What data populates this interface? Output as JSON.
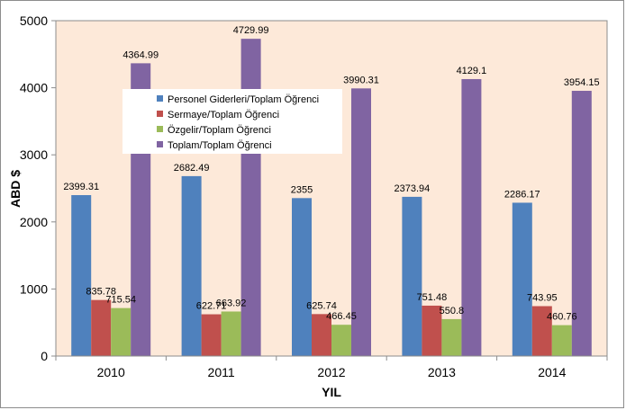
{
  "chart_data": {
    "type": "bar",
    "categories": [
      "2010",
      "2011",
      "2012",
      "2013",
      "2014"
    ],
    "series": [
      {
        "name": "Personel Giderleri/Toplam Öğrenci",
        "color": "#4f81bd",
        "values": [
          2399.31,
          2682.49,
          2355,
          2373.94,
          2286.17
        ],
        "labels": [
          "2399.31",
          "2682.49",
          "2355",
          "2373.94",
          "2286.17"
        ]
      },
      {
        "name": "Sermaye/Toplam Öğrenci",
        "color": "#c0504d",
        "values": [
          835.78,
          622.71,
          625.74,
          751.48,
          743.95
        ],
        "labels": [
          "835.78",
          "622.71",
          "625.74",
          "751.48",
          "743.95"
        ]
      },
      {
        "name": "Özgelir/Toplam Öğrenci",
        "color": "#9bbb59",
        "values": [
          715.54,
          663.92,
          466.45,
          550.8,
          460.76
        ],
        "labels": [
          "715.54",
          "663.92",
          "466.45",
          "550.8",
          "460.76"
        ]
      },
      {
        "name": "Toplam/Toplam Öğrenci",
        "color": "#8064a2",
        "values": [
          4364.99,
          4729.99,
          3990.31,
          4129.1,
          3954.15
        ],
        "labels": [
          "4364.99",
          "4729.99",
          "3990.31",
          "4129.1",
          "3954.15"
        ]
      }
    ],
    "title": "",
    "xlabel": "YIL",
    "ylabel": "ABD $",
    "ylim": [
      0,
      5000
    ],
    "yticks": [
      "0",
      "1000",
      "2000",
      "3000",
      "4000",
      "5000"
    ],
    "grid": false,
    "legend_position": "top-center",
    "plot_background": "#fde9d9"
  }
}
